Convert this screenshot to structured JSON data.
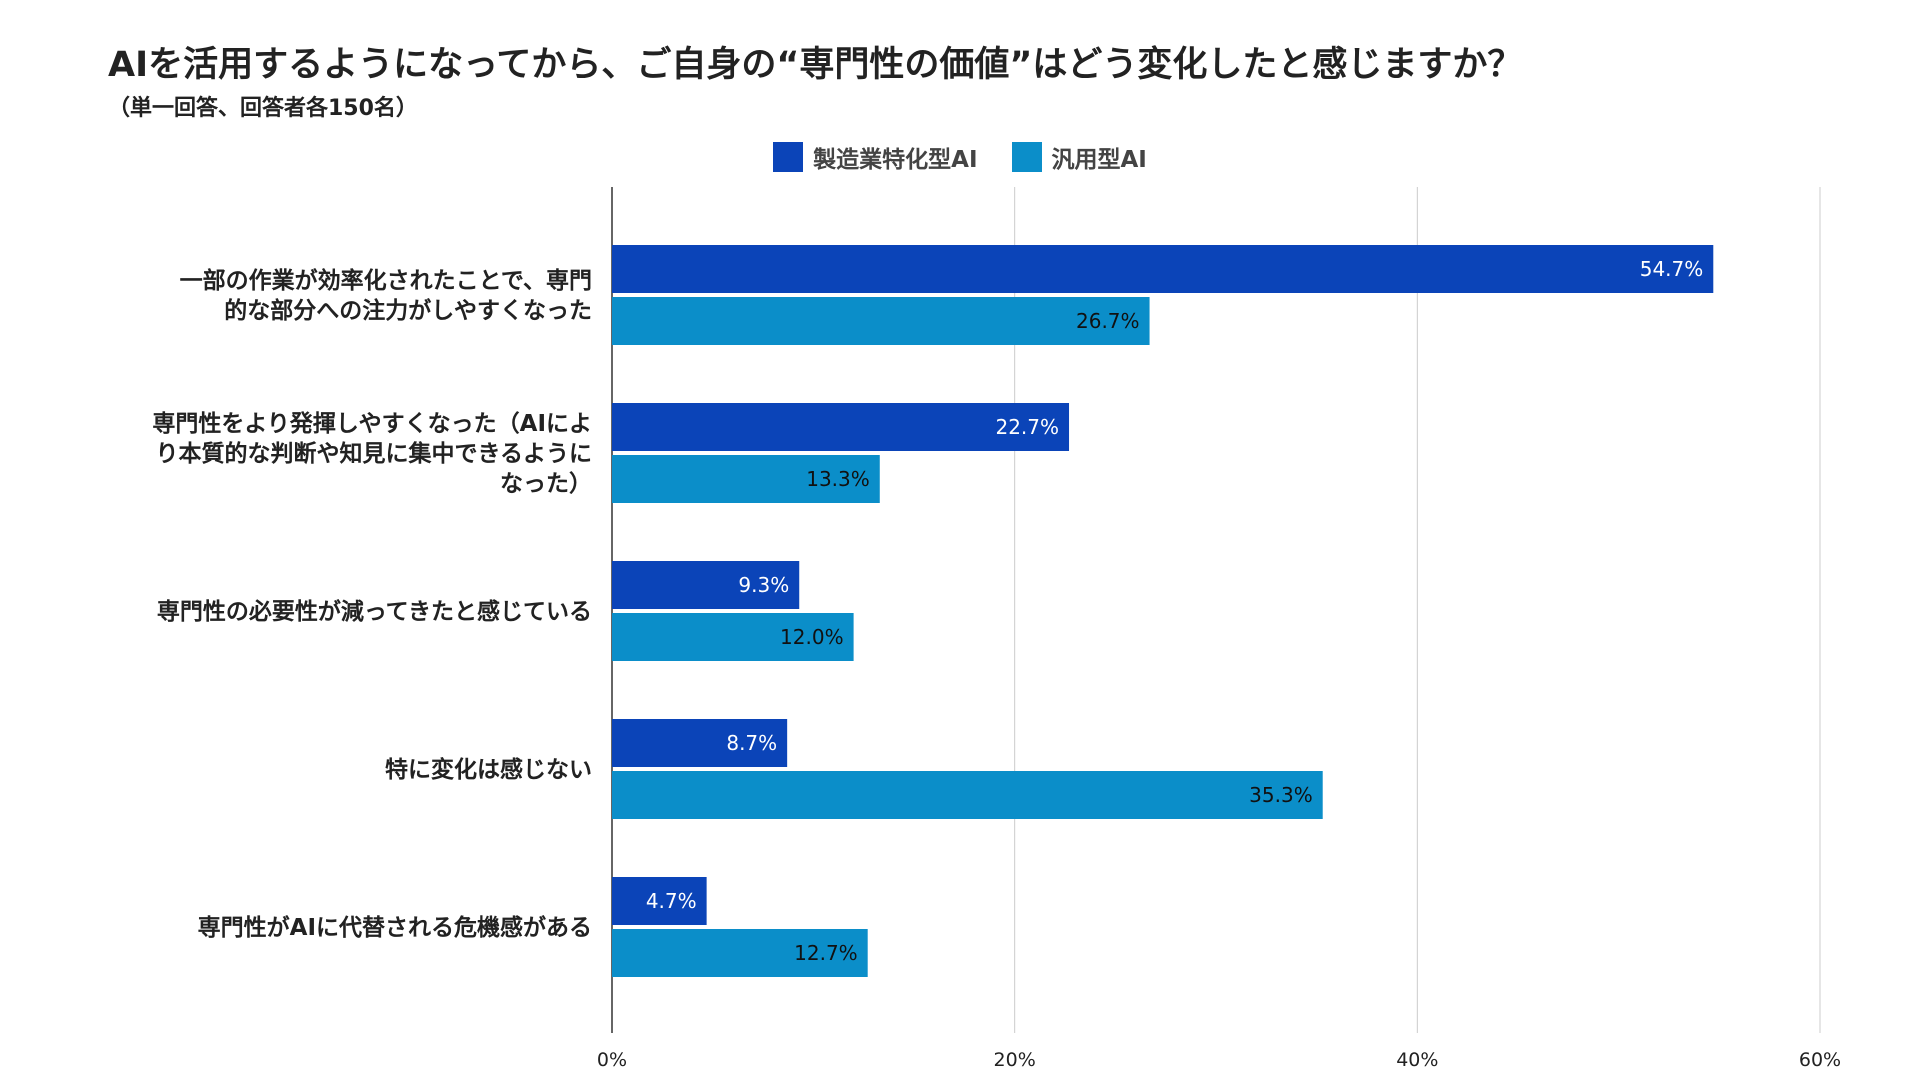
{
  "title": "AIを活用するようになってから、ご自身の“専門性の価値”はどう変化したと感じますか？",
  "subtitle": "（単一回答、回答者各150名）",
  "colors": {
    "series1": "#0b44b8",
    "series2": "#0b8ec9",
    "grid": "#cccccc",
    "axis": "#333333"
  },
  "chart_data": {
    "type": "bar",
    "orientation": "horizontal",
    "categories": [
      [
        "一部の作業が効率化されたことで、専門",
        "的な部分への注力がしやすくなった"
      ],
      [
        "専門性をより発揮しやすくなった（AIによ",
        "り本質的な判断や知見に集中できるように",
        "なった）"
      ],
      [
        "専門性の必要性が減ってきたと感じている"
      ],
      [
        "特に変化は感じない"
      ],
      [
        "専門性がAIに代替される危機感がある"
      ]
    ],
    "series": [
      {
        "name": "製造業特化型AI",
        "values": [
          54.7,
          22.7,
          9.3,
          8.7,
          4.7
        ],
        "labels": [
          "54.7%",
          "22.7%",
          "9.3%",
          "8.7%",
          "4.7%"
        ]
      },
      {
        "name": "汎用型AI",
        "values": [
          26.7,
          13.3,
          12.0,
          35.3,
          12.7
        ],
        "labels": [
          "26.7%",
          "13.3%",
          "12.0%",
          "35.3%",
          "12.7%"
        ]
      }
    ],
    "xlim": [
      0,
      60
    ],
    "ticks": [
      0,
      20,
      40,
      60
    ],
    "tick_labels": [
      "0%",
      "20%",
      "40%",
      "60%"
    ],
    "grid": true,
    "legend": "top-center"
  }
}
